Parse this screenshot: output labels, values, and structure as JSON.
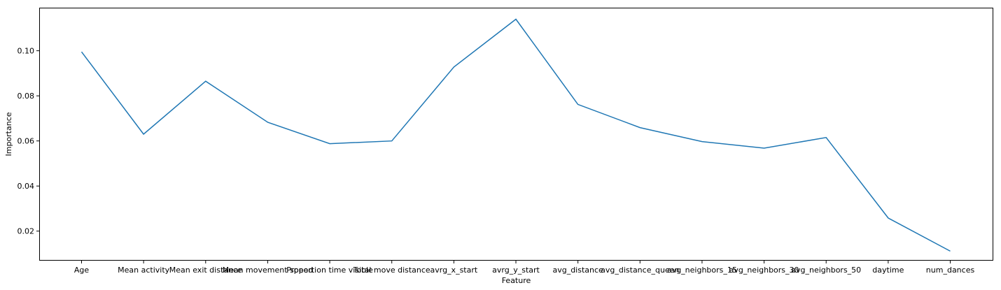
{
  "chart_data": {
    "type": "line",
    "title": "",
    "xlabel": "Feature",
    "ylabel": "Importance",
    "categories": [
      "Age",
      "Mean activity",
      "Mean exit distance",
      "Mean movement speed",
      "Proportion time visible",
      "Total move distance",
      "avrg_x_start",
      "avrg_y_start",
      "avg_distance",
      "avg_distance_queen",
      "avg_neighbors_15",
      "avg_neighbors_30",
      "avg_neighbors_50",
      "daytime",
      "num_dances"
    ],
    "series": [
      {
        "name": "Importance",
        "color": "#1f77b4",
        "values": [
          0.0995,
          0.063,
          0.0865,
          0.0683,
          0.0588,
          0.06,
          0.0928,
          0.114,
          0.0762,
          0.0659,
          0.0597,
          0.0568,
          0.0615,
          0.0258,
          0.0111
        ]
      }
    ],
    "yticks": [
      0.02,
      0.04,
      0.06,
      0.08,
      0.1
    ],
    "ytick_labels": [
      "0.02",
      "0.04",
      "0.06",
      "0.08",
      "0.10"
    ],
    "ylim": [
      0.0069,
      0.1191
    ],
    "grid": false
  }
}
